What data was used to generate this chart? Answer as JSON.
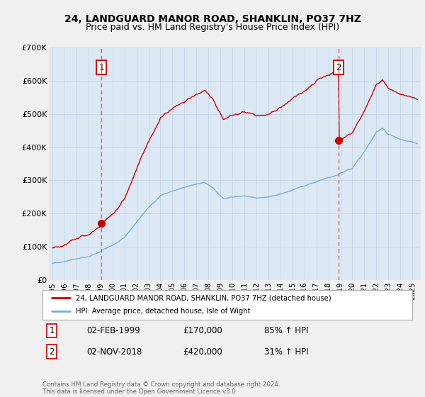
{
  "title": "24, LANDGUARD MANOR ROAD, SHANKLIN, PO37 7HZ",
  "subtitle": "Price paid vs. HM Land Registry's House Price Index (HPI)",
  "ylim": [
    0,
    700000
  ],
  "yticks": [
    0,
    100000,
    200000,
    300000,
    400000,
    500000,
    600000,
    700000
  ],
  "ytick_labels": [
    "£0",
    "£100K",
    "£200K",
    "£300K",
    "£400K",
    "£500K",
    "£600K",
    "£700K"
  ],
  "price_color": "#cc0000",
  "hpi_color": "#7aadd4",
  "vline_color": "#e06060",
  "transaction1_date": 1999.083,
  "transaction1_price": 170000,
  "transaction2_date": 2018.836,
  "transaction2_price": 420000,
  "legend_label1": "24, LANDGUARD MANOR ROAD, SHANKLIN, PO37 7HZ (detached house)",
  "legend_label2": "HPI: Average price, detached house, Isle of Wight",
  "table_row1": [
    "1",
    "02-FEB-1999",
    "£170,000",
    "85% ↑ HPI"
  ],
  "table_row2": [
    "2",
    "02-NOV-2018",
    "£420,000",
    "31% ↑ HPI"
  ],
  "footer": "Contains HM Land Registry data © Crown copyright and database right 2024.\nThis data is licensed under the Open Government Licence v3.0.",
  "background_color": "#f0f0f0",
  "plot_background": "#dce9f5",
  "grid_color": "#c8d8e8",
  "title_fontsize": 10,
  "subtitle_fontsize": 9
}
